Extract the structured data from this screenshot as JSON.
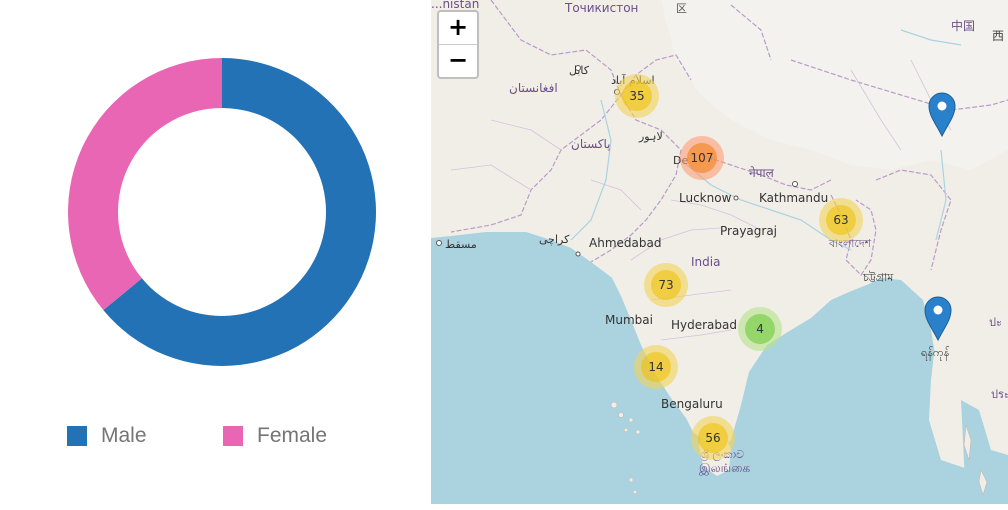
{
  "chart_data": {
    "type": "pie",
    "series": [
      {
        "name": "Male",
        "value": 64,
        "color": "#2372b6"
      },
      {
        "name": "Female",
        "value": 36,
        "color": "#e966b5"
      }
    ],
    "legend_position": "bottom"
  },
  "map": {
    "zoom_in_label": "+",
    "zoom_out_label": "−",
    "clusters": [
      {
        "count": "35",
        "level": "medium"
      },
      {
        "count": "107",
        "level": "large"
      },
      {
        "count": "63",
        "level": "medium"
      },
      {
        "count": "73",
        "level": "medium"
      },
      {
        "count": "4",
        "level": "small"
      },
      {
        "count": "14",
        "level": "medium"
      },
      {
        "count": "56",
        "level": "medium"
      }
    ],
    "labels": {
      "tajikistan": "Точикистон",
      "afghanistan_top": "...nistan",
      "china": "中国",
      "china_abbrev": "西",
      "kabul": "کابل",
      "islamabad": "اسلام آباد",
      "afghanistan": "افغانستان",
      "lahore": "لاہور",
      "pakistan": "پاکستان",
      "delhi": "De",
      "nepal": "नेपाल",
      "lucknow": "Lucknow",
      "kathmandu": "Kathmandu",
      "muscat": "مسقط",
      "karachi": "کراچی",
      "ahmedabad": "Ahmedabad",
      "prayagraj": "Prayagraj",
      "bangladesh": "বাংলাদেশ",
      "india": "India",
      "chittagong": "চট্টগ্রাম",
      "mumbai": "Mumbai",
      "hyderabad": "Hyderabad",
      "yangon": "ရန်ကုန်",
      "bengaluru": "Bengaluru",
      "sri_lanka_si": "ශ්‍රී ලංකාව",
      "sri_lanka_ta": "இலங்கை",
      "thailand": "ประเทศ",
      "edge_right": "ปะ"
    }
  }
}
